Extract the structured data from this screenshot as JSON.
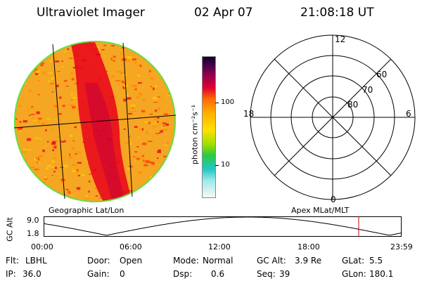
{
  "header": {
    "instrument": "Ultraviolet Imager",
    "date": "02 Apr 07",
    "time": "21:08:18 UT"
  },
  "colorbar": {
    "label": "photon cm⁻²s⁻¹",
    "ticks": [
      "100",
      "10"
    ]
  },
  "polar_plot": {
    "mlt_labels": {
      "top": "12",
      "left": "18",
      "right": "6",
      "bottom": "0"
    },
    "lat_labels": [
      "60",
      "70",
      "80"
    ]
  },
  "projection_labels": {
    "left": "Geographic Lat/Lon",
    "right": "Apex MLat/MLT"
  },
  "altitude_plot": {
    "axis_label": "GC Alt",
    "y_ticks": [
      "9.0",
      "1.8"
    ],
    "x_ticks": [
      "00:00",
      "06:00",
      "12:00",
      "18:00",
      "23:59"
    ],
    "current_time_marker_hours": 21.14,
    "series_color": "#000000",
    "marker_color": "#cc0000"
  },
  "status": {
    "row1": [
      {
        "label": "Flt:",
        "value": "LBHL"
      },
      {
        "label": "Door:",
        "value": "Open"
      },
      {
        "label": "Mode:",
        "value": "Normal"
      },
      {
        "label": "GC Alt:",
        "value": "3.9 Re"
      },
      {
        "label": "GLat:",
        "value": "5.5"
      }
    ],
    "row2": [
      {
        "label": "IP:",
        "value": "36.0"
      },
      {
        "label": "Gain:",
        "value": "0"
      },
      {
        "label": "Dsp:",
        "value": "0.6"
      },
      {
        "label": "Seq:",
        "value": "39"
      },
      {
        "label": "GLon:",
        "value": "180.1"
      }
    ]
  }
}
